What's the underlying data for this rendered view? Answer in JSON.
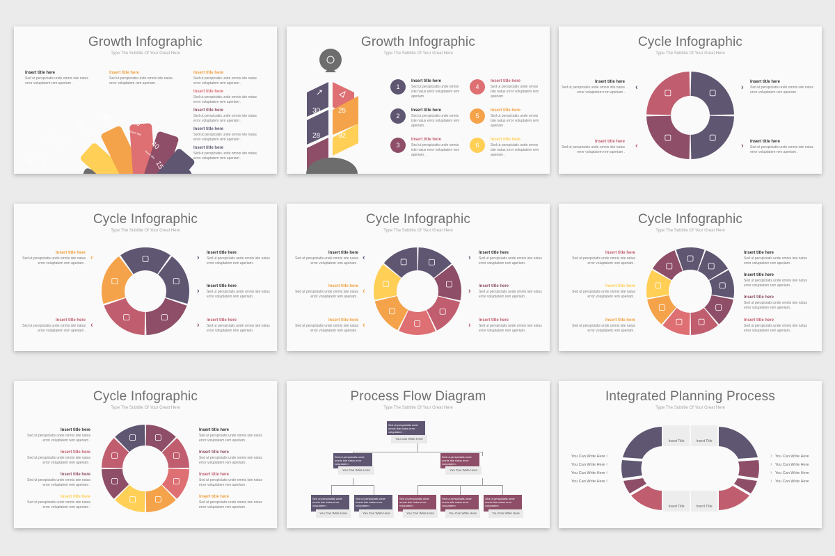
{
  "slides": [
    {
      "title": "Growth Infographic",
      "subtitle": "Type The Subtitle Of Your Great Here"
    },
    {
      "title": "Growth Infographic",
      "subtitle": "Type The Subtitle Of Your Great Here"
    },
    {
      "title": "Cycle Infographic",
      "subtitle": "Type The Subtitle Of Your Great Here"
    },
    {
      "title": "Cycle Infographic",
      "subtitle": "Type The Subtitle Of Your Great Here"
    },
    {
      "title": "Cycle Infographic",
      "subtitle": "Type The Subtitle Of Your Great Here"
    },
    {
      "title": "Cycle Infographic",
      "subtitle": "Type The Subtitle Of Your Great Here"
    },
    {
      "title": "Cycle Infographic",
      "subtitle": "Type The Subtitle Of Your Great Here"
    },
    {
      "title": "Process Flow Diagram",
      "subtitle": "Type The Subtitle Of Your Great Here"
    },
    {
      "title": "Integrated Planning Process",
      "subtitle": "Type The Subtitle Of Your Great Here"
    }
  ],
  "text": {
    "insert_title": "Insert title here",
    "body": "Sed ut perspiciatis unde omnis iste natus error voluptatem rem aperiam .",
    "flow_body": "Sed ut perspiciatis unde omnis iste natus error voluptatem .",
    "write_here": "You Can Write Here",
    "insert_title_short": "Insert Title"
  },
  "growth_fan": {
    "values": [
      "68",
      "72",
      "25",
      "25",
      "80",
      "40",
      "15"
    ],
    "suffix": "%",
    "label": "Insert title"
  },
  "leaf": {
    "values": [
      "30",
      "25",
      "28",
      "92"
    ],
    "suffix": "%",
    "label": "Insert title"
  },
  "numbered": [
    "1",
    "2",
    "3",
    "4",
    "5",
    "6"
  ],
  "colors": {
    "dark": "#5f5672",
    "plum": "#8e4e67",
    "rose": "#c05e6f",
    "coral": "#de6f72",
    "orange": "#f5a34a",
    "yellow": "#ffcf56",
    "gray": "#6d6d6d",
    "orange_text": "#f0a040",
    "rose_text": "#c05e6f"
  }
}
